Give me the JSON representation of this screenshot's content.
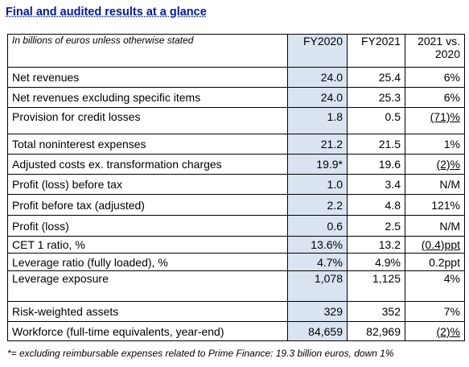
{
  "title": "Final and audited results at a glance",
  "header": {
    "label": "In billions of euros unless otherwise stated",
    "col1": "FY2020",
    "col2": "FY2021",
    "col3_line1": "2021 vs.",
    "col3_line2": "2020"
  },
  "rows": [
    {
      "label": "Net revenues",
      "fy2020": "24.0",
      "fy2021": "25.4",
      "change": "6%"
    },
    {
      "label": "Net revenues excluding specific items",
      "fy2020": "24.0",
      "fy2021": "25.3",
      "change": "6%"
    },
    {
      "label": "Provision for credit losses",
      "fy2020": "1.8",
      "fy2021": "0.5",
      "change": "(71)%"
    },
    {
      "label": "Total noninterest expenses",
      "fy2020": "21.2",
      "fy2021": "21.5",
      "change": "1%"
    },
    {
      "label": "Adjusted costs ex. transformation charges",
      "fy2020": "19.9*",
      "fy2021": "19.6",
      "change": "(2)%"
    },
    {
      "label": "Profit (loss) before tax",
      "fy2020": "1.0",
      "fy2021": "3.4",
      "change": "N/M"
    },
    {
      "label": "Profit before tax (adjusted)",
      "fy2020": "2.2",
      "fy2021": "4.8",
      "change": "121%"
    },
    {
      "label": "Profit (loss)",
      "fy2020": "0.6",
      "fy2021": "2.5",
      "change": "N/M"
    },
    {
      "label": "CET 1 ratio, %",
      "fy2020": "13.6%",
      "fy2021": "13.2",
      "change": "(0.4)ppt"
    },
    {
      "label": "Leverage ratio (fully loaded), %",
      "fy2020": "4.7%",
      "fy2021": "4.9%",
      "change": "0.2ppt"
    },
    {
      "label": "Leverage exposure",
      "fy2020": "1,078",
      "fy2021": "1,125",
      "change": "4%"
    },
    {
      "label": "Risk-weighted assets",
      "fy2020": "329",
      "fy2021": "352",
      "change": "7%"
    },
    {
      "label": "Workforce (full-time equivalents, year-end)",
      "fy2020": "84,659",
      "fy2021": "82,969",
      "change": "(2)%"
    }
  ],
  "footnote": "*= excluding reimbursable expenses related to Prime Finance: 19.3 billion euros, down 1%",
  "colors": {
    "title": "#0018A8",
    "fy2020_fill": "#dae3f0"
  }
}
